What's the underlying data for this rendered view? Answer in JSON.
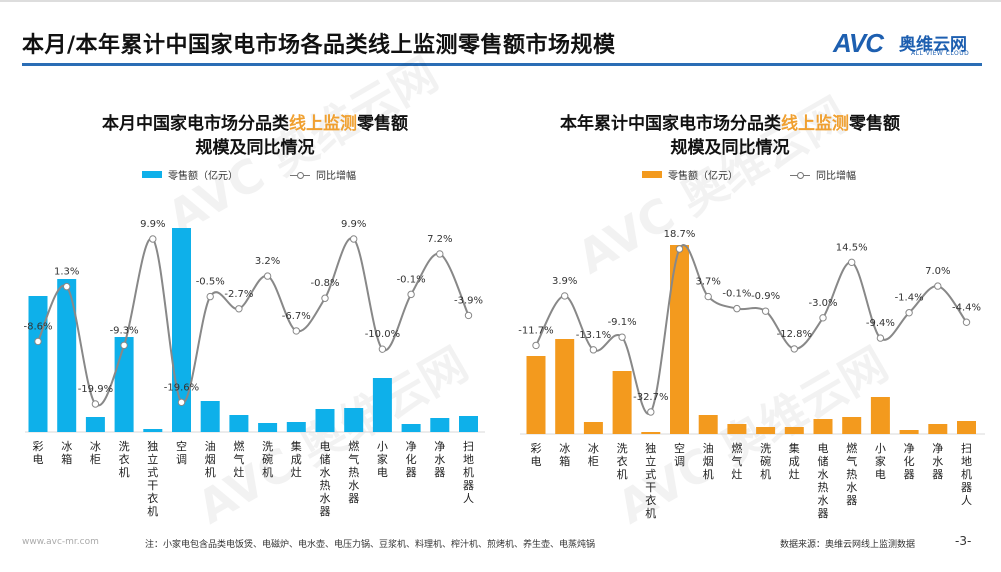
{
  "header": {
    "title": "本月/本年累计中国家电市场各品类线上监测零售额市场规模",
    "logo_mark": "AVC",
    "logo_cn": "奥维云网",
    "logo_en": "ALL VIEW CLOUD"
  },
  "colors": {
    "accent_rule": "#2a6db5",
    "monthly_bar": "#0eb0ea",
    "ytd_bar": "#f39a1e",
    "line": "#888888",
    "highlight": "#f0a030"
  },
  "chart_data": [
    {
      "type": "bar+line",
      "title_pre": "本月中国家电市场分品类",
      "title_hl": "线上监测",
      "title_post": "零售额",
      "title_line2": "规模及同比情况",
      "categories": [
        "彩电",
        "冰箱",
        "冰柜",
        "洗衣机",
        "独立式干衣机",
        "空调",
        "油烟机",
        "燃气灶",
        "洗碗机",
        "集成灶",
        "电储水热水器",
        "燃气热水器",
        "小家电",
        "净化器",
        "净水器",
        "扫地机器人"
      ],
      "series": [
        {
          "name": "零售额（亿元）",
          "type": "bar",
          "values": [
            136,
            153,
            15,
            95,
            3,
            204,
            31,
            17,
            9,
            10,
            23,
            24,
            54,
            8,
            14,
            16
          ]
        },
        {
          "name": "同比增幅",
          "type": "line",
          "values": [
            -8.6,
            1.3,
            -19.9,
            -9.3,
            9.9,
            -19.6,
            -0.5,
            -2.7,
            3.2,
            -6.7,
            -0.8,
            9.9,
            -10.0,
            -0.1,
            7.2,
            -3.9
          ],
          "labels": [
            "-8.6%",
            "1.3%",
            "-19.9%",
            "-9.3%",
            "9.9%",
            "-19.6%",
            "-0.5%",
            "-2.7%",
            "3.2%",
            "-6.7%",
            "-0.8%",
            "9.9%",
            "-10.0%",
            "-0.1%",
            "7.2%",
            "-3.9%"
          ]
        }
      ],
      "legend_placement": "top",
      "grid": false
    },
    {
      "type": "bar+line",
      "title_pre": "本年累计中国家电市场分品类",
      "title_hl": "线上监测",
      "title_post": "零售额",
      "title_line2": "规模及同比情况",
      "categories": [
        "彩电",
        "冰箱",
        "冰柜",
        "洗衣机",
        "独立式干衣机",
        "空调",
        "油烟机",
        "燃气灶",
        "洗碗机",
        "集成灶",
        "电储水热水器",
        "燃气热水器",
        "小家电",
        "净化器",
        "净水器",
        "扫地机器人"
      ],
      "series": [
        {
          "name": "零售额（亿元）",
          "type": "bar",
          "values": [
            78,
            95,
            12,
            63,
            2,
            189,
            19,
            10,
            7,
            7,
            15,
            17,
            37,
            4,
            10,
            13
          ]
        },
        {
          "name": "同比增幅",
          "type": "line",
          "values": [
            -11.7,
            3.9,
            -13.1,
            -9.1,
            -32.7,
            18.7,
            3.7,
            -0.1,
            -0.9,
            -12.8,
            -3.0,
            14.5,
            -9.4,
            -1.4,
            7.0,
            -4.4
          ],
          "labels": [
            "-11.7%",
            "3.9%",
            "-13.1%",
            "-9.1%",
            "-32.7%",
            "18.7%",
            "3.7%",
            "-0.1%",
            "-0.9%",
            "-12.8%",
            "-3.0%",
            "14.5%",
            "-9.4%",
            "-1.4%",
            "7.0%",
            "-4.4%"
          ]
        }
      ],
      "legend_placement": "top",
      "grid": false
    }
  ],
  "footer": {
    "url": "www.avc-mr.com",
    "note": "注：小家电包含品类电饭煲、电磁炉、电水壶、电压力锅、豆浆机、料理机、榨汁机、煎烤机、养生壶、电蒸炖锅",
    "source": "数据来源：奥维云网线上监测数据",
    "page": "-3-"
  }
}
